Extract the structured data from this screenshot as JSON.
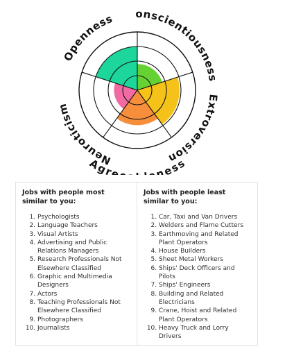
{
  "radar": {
    "axes": [
      {
        "label": "Openness",
        "color": "#1cd69b"
      },
      {
        "label": "Conscientiousness",
        "color": "#66d132"
      },
      {
        "label": "Extroversion",
        "color": "#f5c21a"
      },
      {
        "label": "Agreeableness",
        "color": "#f78e3c"
      },
      {
        "label": "Neuroticism",
        "color": "#f16ba2"
      }
    ],
    "ring_count": 4,
    "max": 4
  },
  "chart_data": {
    "type": "radar",
    "categories": [
      "Openness",
      "Conscientiousness",
      "Extroversion",
      "Agreeableness",
      "Neuroticism"
    ],
    "values": [
      3.0,
      1.8,
      2.9,
      2.4,
      1.6
    ],
    "max": 4
  },
  "most_similar": {
    "title": "Jobs with people most similar to you:",
    "items": [
      "Psychologists",
      "Language Teachers",
      "Visual Artists",
      "Advertising and Public Relations Managers",
      "Research Professionals Not Elsewhere Classified",
      "Graphic and Multimedia Designers",
      "Actors",
      "Teaching Professionals Not Elsewhere Classified",
      "Photographers",
      "Journalists"
    ]
  },
  "least_similar": {
    "title": "Jobs with people least similar to you:",
    "items": [
      "Car, Taxi and Van Drivers",
      "Welders and Flame Cutters",
      "Earthmoving and Related Plant Operators",
      "House Builders",
      "Sheet Metal Workers",
      "Ships' Deck Officers and Pilots",
      "Ships' Engineers",
      "Building and Related Electricians",
      "Crane, Hoist and Related Plant Operators",
      "Heavy Truck and Lorry Drivers"
    ]
  }
}
